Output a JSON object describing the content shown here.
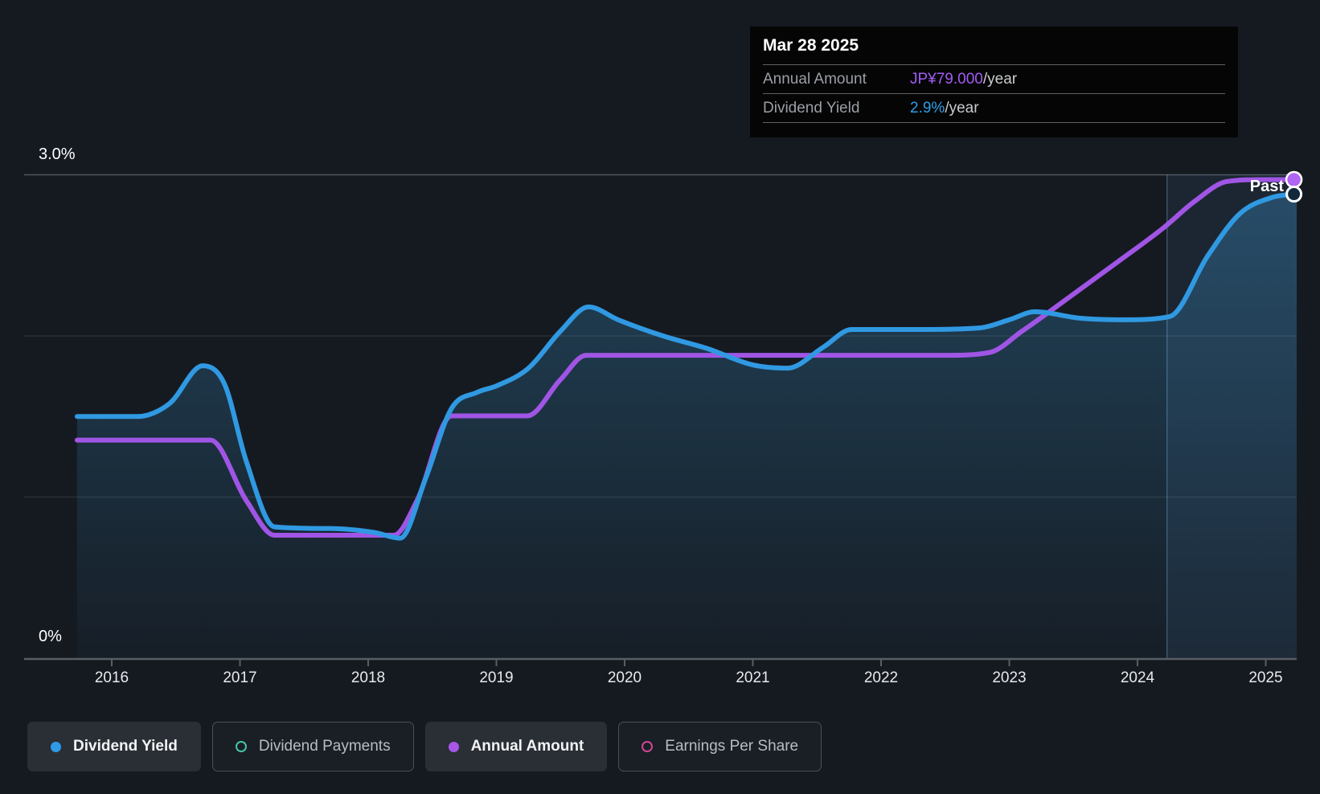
{
  "page": {
    "background": "#151A21"
  },
  "tooltip": {
    "title": "Mar 28 2025",
    "rows": [
      {
        "label": "Annual Amount",
        "value": "JP¥79.000",
        "suffix": "/year",
        "value_color": "#A45BF5"
      },
      {
        "label": "Dividend Yield",
        "value": "2.9%",
        "suffix": "/year",
        "value_color": "#2D9FE8"
      }
    ]
  },
  "chart_data": {
    "type": "line",
    "x_axis": {
      "ticks": [
        2016,
        2017,
        2018,
        2019,
        2020,
        2021,
        2022,
        2023,
        2024,
        2025
      ],
      "range": [
        2015.32,
        2025.24
      ]
    },
    "y_axis": {
      "unit": "%",
      "range": [
        0,
        3.0
      ],
      "tick_labels": [
        "3.0%",
        "0%"
      ],
      "gridlines_pct": [
        1.0,
        2.0,
        3.0
      ]
    },
    "past_label": "Past",
    "past_highlight_start_year": 2024.23,
    "data_start_year": 2015.73,
    "data_end_year": 2025.22,
    "series": [
      {
        "name": "Dividend Yield",
        "unit": "%",
        "color": "#3099E2",
        "style": "area-line",
        "end_value_pct": 2.9,
        "end_marker": {
          "fill": "#12293C",
          "stroke": "#FFFFFF"
        },
        "points": [
          [
            2015.73,
            1.5
          ],
          [
            2016.2,
            1.5
          ],
          [
            2016.45,
            1.58
          ],
          [
            2016.71,
            1.815
          ],
          [
            2016.88,
            1.7
          ],
          [
            2017.05,
            1.22
          ],
          [
            2017.27,
            0.815
          ],
          [
            2017.7,
            0.805
          ],
          [
            2018.05,
            0.78
          ],
          [
            2018.25,
            0.745
          ],
          [
            2018.45,
            1.12
          ],
          [
            2018.65,
            1.55
          ],
          [
            2018.85,
            1.65
          ],
          [
            2019.0,
            1.69
          ],
          [
            2019.25,
            1.8
          ],
          [
            2019.5,
            2.03
          ],
          [
            2019.72,
            2.18
          ],
          [
            2019.95,
            2.1
          ],
          [
            2020.3,
            2.0
          ],
          [
            2020.65,
            1.92
          ],
          [
            2021.0,
            1.82
          ],
          [
            2021.27,
            1.8
          ],
          [
            2021.55,
            1.93
          ],
          [
            2021.77,
            2.04
          ],
          [
            2022.3,
            2.04
          ],
          [
            2022.77,
            2.05
          ],
          [
            2023.0,
            2.1
          ],
          [
            2023.2,
            2.15
          ],
          [
            2023.55,
            2.11
          ],
          [
            2023.9,
            2.1
          ],
          [
            2024.25,
            2.12
          ],
          [
            2024.55,
            2.5
          ],
          [
            2024.8,
            2.76
          ],
          [
            2025.05,
            2.86
          ],
          [
            2025.22,
            2.88
          ]
        ]
      },
      {
        "name": "Annual Amount",
        "unit": "JP¥/year",
        "color": "#A055E5",
        "style": "line",
        "end_value_jpy": 79.0,
        "jpy_per_pct_scale": 26.6,
        "end_marker": {
          "fill": "#B264F2",
          "stroke": "#FFFFFF"
        },
        "points_jpy": [
          [
            2015.73,
            36.0
          ],
          [
            2016.3,
            36.0
          ],
          [
            2016.77,
            36.0
          ],
          [
            2017.05,
            26.0
          ],
          [
            2017.27,
            20.3
          ],
          [
            2017.7,
            20.3
          ],
          [
            2018.2,
            20.3
          ],
          [
            2018.38,
            26.0
          ],
          [
            2018.65,
            40.0
          ],
          [
            2019.0,
            40.0
          ],
          [
            2019.24,
            40.0
          ],
          [
            2019.5,
            46.0
          ],
          [
            2019.7,
            50.0
          ],
          [
            2020.5,
            50.0
          ],
          [
            2021.5,
            50.0
          ],
          [
            2022.5,
            50.0
          ],
          [
            2022.85,
            50.5
          ],
          [
            2023.1,
            54.0
          ],
          [
            2023.3,
            57.0
          ],
          [
            2023.85,
            65.5
          ],
          [
            2024.2,
            71.0
          ],
          [
            2024.45,
            75.5
          ],
          [
            2024.7,
            78.7
          ],
          [
            2025.0,
            79.0
          ],
          [
            2025.22,
            79.0
          ]
        ]
      }
    ],
    "colors": {
      "grid_major": "rgba(235,240,245,0.28)",
      "grid_minor": "rgba(235,240,245,0.10)",
      "axis_line": "#595E64",
      "area_fill_top": "rgba(60,160,220,0.32)",
      "area_fill_bottom": "rgba(60,160,220,0.03)",
      "past_highlight": "rgba(96,170,230,0.09)",
      "past_divider_line": "rgba(130,180,225,0.35)"
    }
  },
  "legend": {
    "items": [
      {
        "label": "Dividend Yield",
        "marker": "filled-circle",
        "color": "#2E9BE8",
        "active": true
      },
      {
        "label": "Dividend Payments",
        "marker": "ring",
        "color": "#43C6A8",
        "active": false
      },
      {
        "label": "Annual Amount",
        "marker": "filled-circle",
        "color": "#A855E8",
        "active": true
      },
      {
        "label": "Earnings Per Share",
        "marker": "ring",
        "color": "#CE4794",
        "active": false
      }
    ]
  }
}
